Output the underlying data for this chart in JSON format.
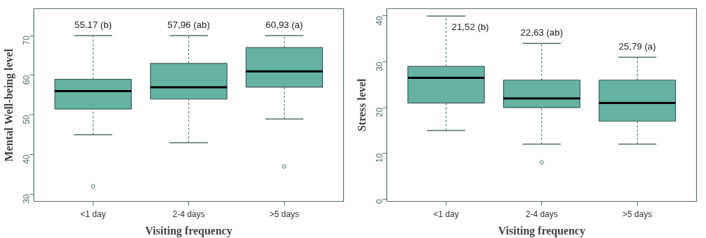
{
  "chart_data": [
    {
      "type": "box",
      "xlabel": "Visiting frequency",
      "ylabel": "Mental Well-being level",
      "categories": [
        "<1 day",
        "2-4 days",
        ">5 days"
      ],
      "series": [
        {
          "color": "#67b3a3",
          "boxes": [
            {
              "low": 45,
              "q1": 51.5,
              "median": 56,
              "q3": 59,
              "high": 70,
              "outliers": [
                32
              ]
            },
            {
              "low": 43,
              "q1": 54,
              "median": 57,
              "q3": 63,
              "high": 70
            },
            {
              "low": 49,
              "q1": 57,
              "median": 61,
              "q3": 67,
              "high": 70,
              "outliers": [
                37
              ]
            }
          ]
        }
      ],
      "ylim": [
        28.2,
        76.8
      ],
      "yticks": [
        30,
        40,
        50,
        60,
        70
      ],
      "annotations": [
        "55,17 (b)",
        "57,96 (ab)",
        "60,93 (a)"
      ]
    },
    {
      "type": "box",
      "xlabel": "Visiting frequency",
      "ylabel": "Stress level",
      "categories": [
        "<1 day",
        "2-4 days",
        ">5 days"
      ],
      "series": [
        {
          "color": "#67b3a3",
          "boxes": [
            {
              "low": 15,
              "q1": 21,
              "median": 26.5,
              "q3": 29,
              "high": 40
            },
            {
              "low": 12,
              "q1": 20,
              "median": 22,
              "q3": 26,
              "high": 34,
              "outliers": [
                8
              ]
            },
            {
              "low": 12,
              "q1": 17,
              "median": 21,
              "q3": 26,
              "high": 31
            }
          ]
        }
      ],
      "ylim": [
        -0.5,
        41.6
      ],
      "yticks": [
        0,
        10,
        20,
        30,
        40
      ],
      "annotations": [
        "21,52 (b)",
        "22,63 (ab)",
        "25,79 (a)"
      ]
    }
  ]
}
